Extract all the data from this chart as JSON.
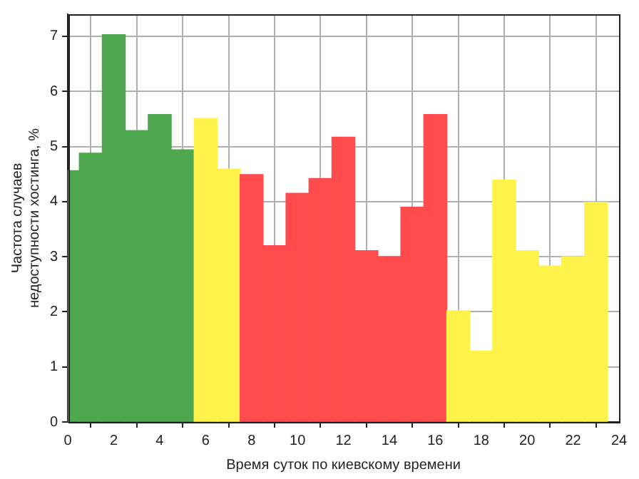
{
  "chart_data": {
    "type": "histogram",
    "xlabel": "Время суток по киевскому времени",
    "ylabel": "Частота случаев\nнедоступности хостинга, %",
    "bins": [
      0,
      0.5,
      1.5,
      2.5,
      3.5,
      4.5,
      5.5,
      6.5,
      7.5,
      8.5,
      9.5,
      10.5,
      11.5,
      12.5,
      13.5,
      14.5,
      15.5,
      16.5,
      17.5,
      18.5,
      19.5,
      20.5,
      21.5,
      22.5,
      23.5
    ],
    "values": [
      4.56,
      4.88,
      7.03,
      5.29,
      5.58,
      4.94,
      5.51,
      4.59,
      4.49,
      3.2,
      4.15,
      4.42,
      5.17,
      3.11,
      3.0,
      3.9,
      5.58,
      2.02,
      1.29,
      4.39,
      3.11,
      2.83,
      3.0,
      3.99
    ],
    "colors": [
      "#4ea64e",
      "#4ea64e",
      "#4ea64e",
      "#4ea64e",
      "#4ea64e",
      "#4ea64e",
      "#fff24b",
      "#fff24b",
      "#ff4b4b",
      "#ff4b4b",
      "#ff4b4b",
      "#ff4b4b",
      "#ff4b4b",
      "#ff4b4b",
      "#ff4b4b",
      "#ff4b4b",
      "#ff4b4b",
      "#fff24b",
      "#fff24b",
      "#fff24b",
      "#fff24b",
      "#fff24b",
      "#fff24b",
      "#fff24b"
    ],
    "xlim": [
      0,
      24
    ],
    "xticks": [
      0,
      2,
      4,
      6,
      8,
      10,
      12,
      14,
      16,
      18,
      20,
      22,
      24
    ],
    "ylim": [
      0,
      7.4
    ],
    "yticks": [
      0,
      1,
      2,
      3,
      4,
      5,
      6,
      7
    ],
    "grid": true
  }
}
